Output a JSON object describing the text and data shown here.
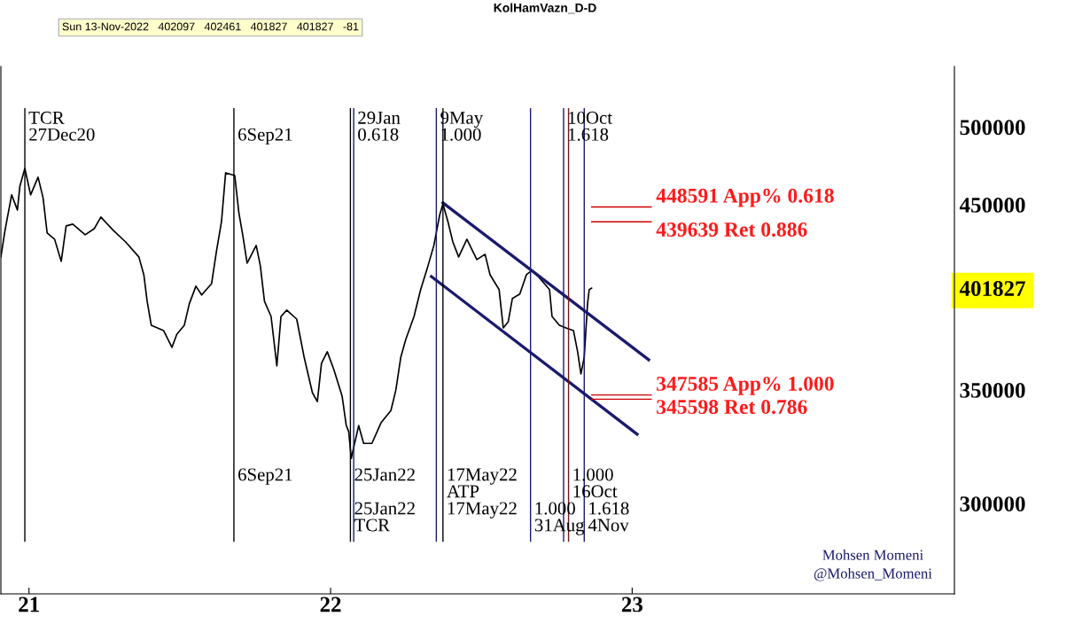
{
  "chart_data": {
    "type": "line",
    "title": "KolHamVazn_D-D",
    "log": true,
    "grid": false,
    "marker": "none",
    "line_style": "solid",
    "xlim": [
      "2020-11-28",
      "2024-01-26"
    ],
    "xticks": [
      {
        "value": "2021-01-01",
        "label": "21"
      },
      {
        "value": "2022-01-01",
        "label": "22"
      },
      {
        "value": "2023-01-01",
        "label": "23"
      }
    ],
    "ylim": [
      265400,
      542800
    ],
    "yticks": [
      300000,
      350000,
      401827,
      450000,
      500000
    ],
    "series": [
      {
        "color": "#000000",
        "x": [
          "2020-11-28",
          "2020-12-03",
          "2020-12-11",
          "2020-12-18",
          "2020-12-21",
          "2020-12-27",
          "2021-01-03",
          "2021-01-12",
          "2021-01-18",
          "2021-01-23",
          "2021-02-01",
          "2021-02-09",
          "2021-02-15",
          "2021-02-23",
          "2021-03-10",
          "2021-03-21",
          "2021-03-29",
          "2021-04-13",
          "2021-04-28",
          "2021-05-14",
          "2021-05-20",
          "2021-05-24",
          "2021-05-29",
          "2021-06-13",
          "2021-06-23",
          "2021-06-29",
          "2021-07-08",
          "2021-07-14",
          "2021-07-22",
          "2021-07-29",
          "2021-08-10",
          "2021-08-16",
          "2021-08-22",
          "2021-08-27",
          "2021-09-07",
          "2021-09-12",
          "2021-09-17",
          "2021-09-22",
          "2021-10-03",
          "2021-10-08",
          "2021-10-13",
          "2021-10-21",
          "2021-10-28",
          "2021-11-02",
          "2021-11-09",
          "2021-11-21",
          "2021-11-30",
          "2021-12-10",
          "2021-12-16",
          "2021-12-21",
          "2021-12-28",
          "2022-01-05",
          "2022-01-15",
          "2022-01-20",
          "2022-01-23",
          "2022-01-26",
          "2022-02-04",
          "2022-02-10",
          "2022-02-20",
          "2022-03-03",
          "2022-03-15",
          "2022-03-21",
          "2022-03-27",
          "2022-04-02",
          "2022-04-12",
          "2022-04-20",
          "2022-04-28",
          "2022-05-06",
          "2022-05-13",
          "2022-05-17",
          "2022-05-23",
          "2022-05-29",
          "2022-06-05",
          "2022-06-15",
          "2022-06-27",
          "2022-07-07",
          "2022-07-13",
          "2022-07-24",
          "2022-07-29",
          "2022-08-04",
          "2022-08-09",
          "2022-08-18",
          "2022-08-26",
          "2022-09-02",
          "2022-09-10",
          "2022-09-23",
          "2022-09-26",
          "2022-10-05",
          "2022-10-13",
          "2022-10-22",
          "2022-10-27",
          "2022-10-31",
          "2022-11-04",
          "2022-11-08",
          "2022-11-10",
          "2022-11-13"
        ],
        "values": [
          419200,
          434600,
          456000,
          446800,
          461500,
          472700,
          456000,
          467100,
          454400,
          433000,
          429400,
          416700,
          437200,
          438300,
          432000,
          435600,
          442500,
          434600,
          427800,
          419200,
          409200,
          394700,
          382100,
          379300,
          370800,
          377500,
          382100,
          393300,
          402900,
          398100,
          404300,
          422700,
          439800,
          469900,
          468200,
          445200,
          430900,
          415700,
          425800,
          414200,
          394700,
          386700,
          361600,
          386700,
          390000,
          385300,
          365900,
          348700,
          344500,
          362900,
          368600,
          359800,
          347000,
          333500,
          330700,
          318900,
          333500,
          325500,
          325500,
          334700,
          340300,
          349900,
          365900,
          374800,
          386700,
          401000,
          412700,
          425800,
          443600,
          450500,
          439800,
          427800,
          419200,
          429400,
          417700,
          420700,
          409200,
          401000,
          380700,
          383900,
          396200,
          398600,
          409200,
          411700,
          407800,
          401000,
          386700,
          382100,
          380700,
          379300,
          368600,
          357700,
          365900,
          393300,
          401000,
          401827
        ]
      },
      {
        "color": "#1a1a6e",
        "x": [
          "2022-05-17",
          "2023-01-21"
        ],
        "values": [
          451100,
          364600
        ]
      },
      {
        "color": "#1a1a6e",
        "x": [
          "2022-05-03",
          "2023-01-07"
        ],
        "values": [
          408200,
          329600
        ]
      }
    ],
    "ref_lines": [
      {
        "axis": "x",
        "value": "2020-12-27",
        "color": "#000000"
      },
      {
        "axis": "x",
        "value": "2021-09-06",
        "color": "#000000"
      },
      {
        "axis": "x",
        "value": "2022-01-25",
        "color": "#000000"
      },
      {
        "axis": "x",
        "value": "2022-01-29",
        "color": "#1a1a6e"
      },
      {
        "axis": "x",
        "value": "2022-05-09",
        "color": "#1a1a6e"
      },
      {
        "axis": "x",
        "value": "2022-05-17",
        "color": "#000000"
      },
      {
        "axis": "x",
        "value": "2022-08-31",
        "color": "#1a1a6e"
      },
      {
        "axis": "x",
        "value": "2022-10-10",
        "color": "#1a1a6e"
      },
      {
        "axis": "x",
        "value": "2022-10-16",
        "color": "#6b1a1a"
      },
      {
        "axis": "x",
        "value": "2022-11-04",
        "color": "#1a1a6e"
      },
      {
        "axis": "y",
        "value": 448591,
        "label": "448591 App% 0.618",
        "color": "#cc0000"
      },
      {
        "axis": "y",
        "value": 439639,
        "label": "439639 Ret 0.886",
        "color": "#cc0000"
      },
      {
        "axis": "y",
        "value": 347585,
        "label": "347585 App% 1.000",
        "color": "#cc0000"
      },
      {
        "axis": "y",
        "value": 345598,
        "label": "345598 Ret 0.786",
        "color": "#cc0000"
      }
    ],
    "annotations": [
      "Sun 13-Nov-2022   402097   402461   401827   401827   -81",
      "Mohsen Momeni\n@Mohsen_Momeni",
      {
        "text": "TCR\n27Dec20",
        "x": "2020-12-27",
        "y": 488300
      },
      {
        "text": "6Sep21",
        "x": "2021-09-06",
        "y": 488300
      },
      {
        "text": "29Jan\n0.618",
        "x": "2022-01-29",
        "y": 488300
      },
      {
        "text": "9May\n1.000",
        "x": "2022-05-09",
        "y": 488300
      },
      {
        "text": "10Oct\n1.618",
        "x": "2022-10-10",
        "y": 488300
      },
      {
        "text": "6Sep21",
        "x": "2021-09-06",
        "y": 314900
      },
      {
        "text": "25Jan22",
        "x": "2022-01-25",
        "y": 314900
      },
      {
        "text": "17May22\nATP",
        "x": "2022-05-17",
        "y": 314900
      },
      {
        "text": "1.000\n16Oct",
        "x": "2022-10-16",
        "y": 314900
      },
      {
        "text": "25Jan22\nTCR",
        "x": "2022-01-25",
        "y": 300800
      },
      {
        "text": "17May22",
        "x": "2022-05-17",
        "y": 300800
      },
      {
        "text": "1.000\n31Aug",
        "x": "2022-08-31",
        "y": 300800
      },
      {
        "text": "1.618\n4Nov",
        "x": "2022-11-04",
        "y": 300800
      }
    ]
  }
}
